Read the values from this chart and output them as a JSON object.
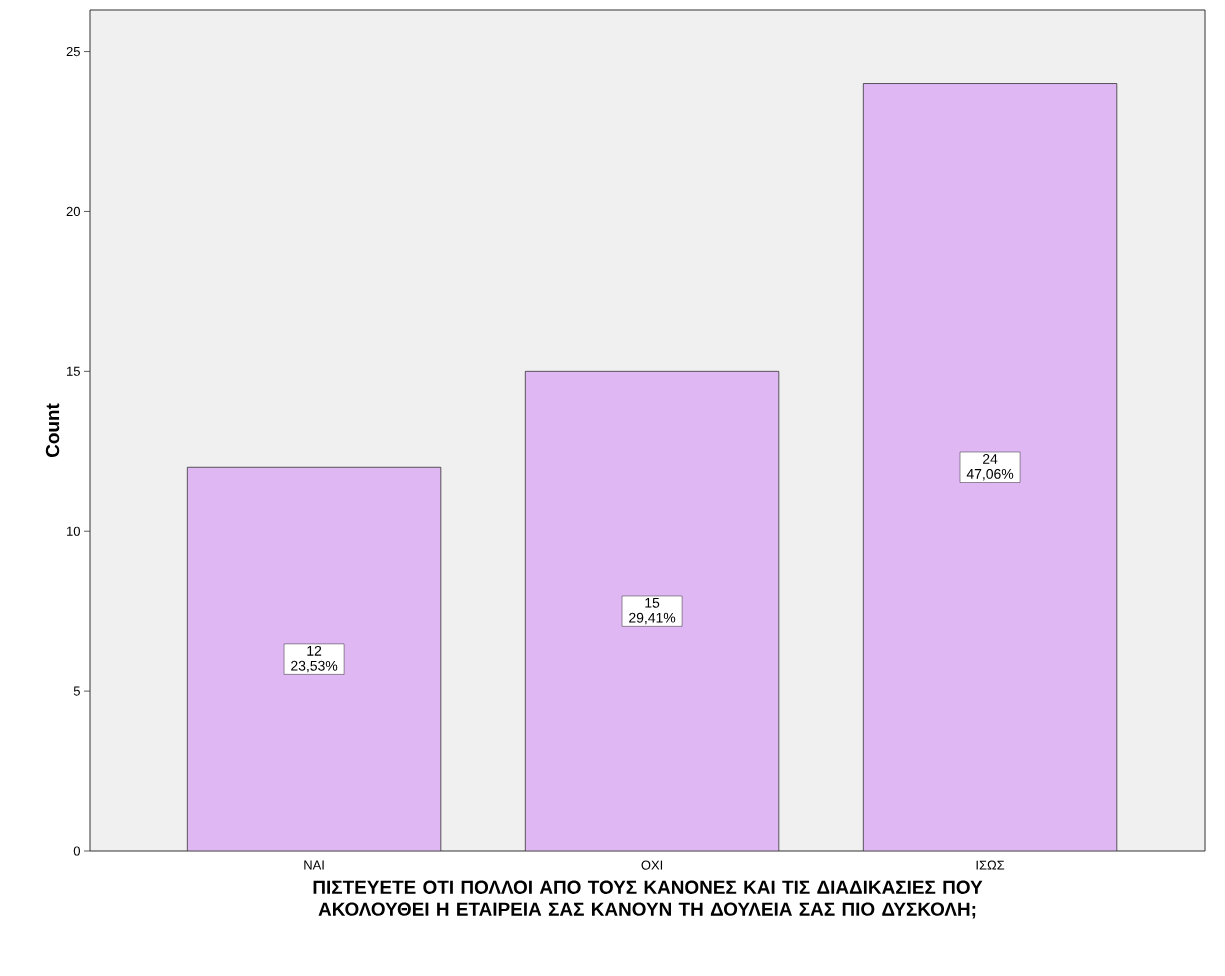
{
  "chart_data": {
    "type": "bar",
    "xlabel": "ΠΙΣΤΕΥΕΤΕ ΟΤΙ ΠΟΛΛΟΙ ΑΠΟ ΤΟΥΣ ΚΑΝΟΝΕΣ ΚΑΙ ΤΙΣ ΔΙΑΔΙΚΑΣΙΕΣ ΠΟΥ ΑΚΟΛΟΥΘΕΙ Η ΕΤΑΙΡΕΙΑ ΣΑΣ ΚΑΝΟΥΝ ΤΗ ΔΟΥΛΕΙΑ ΣΑΣ ΠΙΟ ΔΥΣΚΟΛΗ;",
    "ylabel": "Count",
    "categories": [
      "ΝΑΙ",
      "ΟΧΙ",
      "ΙΣΩΣ"
    ],
    "values": [
      12,
      15,
      24
    ],
    "value_labels": [
      "12 23,53%",
      "15 29,41%",
      "24 47,06%"
    ],
    "color": "#dfb8f3",
    "ylim": [
      0,
      26.3
    ],
    "yticks": [
      0,
      5,
      10,
      15,
      20,
      25
    ]
  }
}
